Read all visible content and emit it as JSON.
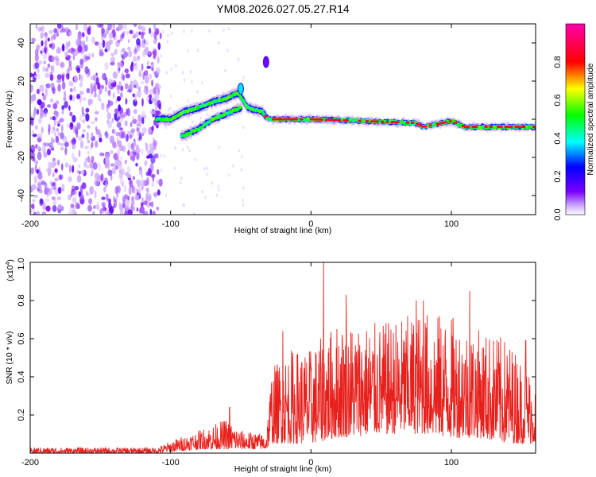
{
  "title": "YM08.2026.027.05.27.R14",
  "chart_data": [
    {
      "type": "heatmap",
      "title": "YM08.2026.027.05.27.R14",
      "xlabel": "Height of straight line (km)",
      "ylabel": "Frequency (Hz)",
      "xlim": [
        -200,
        160
      ],
      "ylim": [
        -50,
        50
      ],
      "xticks": [
        -200,
        -100,
        0,
        100
      ],
      "yticks": [
        -40,
        -20,
        0,
        20,
        40
      ],
      "xtick_labels": [
        "-200",
        "-100",
        "0",
        "100"
      ],
      "ytick_labels": [
        "-40",
        "-20",
        "0",
        "20",
        "40"
      ],
      "colorbar": {
        "label": "Normalized spectral amplitude",
        "range": [
          0,
          1
        ],
        "ticks": [
          0.0,
          0.2,
          0.4,
          0.6,
          0.8
        ],
        "tick_labels": [
          "0.0",
          "0.2",
          "0.4",
          "0.6",
          "0.8"
        ],
        "colors": [
          "#ffffff",
          "#7a00ff",
          "#0000ff",
          "#00ffff",
          "#00ff00",
          "#ffff00",
          "#ff0000",
          "#ff00aa"
        ]
      },
      "noise_region_x": [
        -200,
        -107
      ],
      "ridge": [
        {
          "x": -110,
          "y": 0
        },
        {
          "x": -100,
          "y": 0
        },
        {
          "x": -90,
          "y": 4
        },
        {
          "x": -80,
          "y": 6
        },
        {
          "x": -70,
          "y": 9
        },
        {
          "x": -60,
          "y": 11
        },
        {
          "x": -52,
          "y": 14
        },
        {
          "x": -45,
          "y": 6
        },
        {
          "x": -35,
          "y": 4
        },
        {
          "x": -30,
          "y": 0
        },
        {
          "x": 0,
          "y": 0
        },
        {
          "x": 40,
          "y": -1
        },
        {
          "x": 75,
          "y": -2
        },
        {
          "x": 80,
          "y": -4
        },
        {
          "x": 100,
          "y": -1
        },
        {
          "x": 110,
          "y": -4
        },
        {
          "x": 160,
          "y": -4
        }
      ],
      "lower_branch": [
        {
          "x": -92,
          "y": -9
        },
        {
          "x": -80,
          "y": -5
        },
        {
          "x": -70,
          "y": 0
        },
        {
          "x": -60,
          "y": 3
        },
        {
          "x": -50,
          "y": 6
        }
      ],
      "isolated_features": [
        {
          "x": -32,
          "y": 30
        },
        {
          "x": -50,
          "y": 16
        }
      ]
    },
    {
      "type": "line",
      "xlabel": "Height of straight line (km)",
      "ylabel": "SNR (10 * v/v)",
      "y_multiplier": "(x10",
      "y_multiplier_exp": "4",
      "y_multiplier_close": ")",
      "xlim": [
        -200,
        160
      ],
      "ylim": [
        0,
        1.0
      ],
      "xticks": [
        -200,
        -100,
        0,
        100
      ],
      "yticks": [
        0.2,
        0.4,
        0.6,
        0.8,
        1.0
      ],
      "xtick_labels": [
        "-200",
        "-100",
        "0",
        "100"
      ],
      "ytick_labels": [
        "0.2",
        "0.4",
        "0.6",
        "0.8",
        "1.0"
      ],
      "color": "#e8201c",
      "envelope": [
        {
          "x": -200,
          "lo": 0.0,
          "hi": 0.03
        },
        {
          "x": -110,
          "lo": 0.0,
          "hi": 0.03
        },
        {
          "x": -95,
          "lo": 0.01,
          "hi": 0.08
        },
        {
          "x": -80,
          "lo": 0.02,
          "hi": 0.12
        },
        {
          "x": -60,
          "lo": 0.02,
          "hi": 0.18
        },
        {
          "x": -50,
          "lo": 0.02,
          "hi": 0.12
        },
        {
          "x": -32,
          "lo": 0.02,
          "hi": 0.1
        },
        {
          "x": -28,
          "lo": 0.05,
          "hi": 0.45
        },
        {
          "x": -15,
          "lo": 0.05,
          "hi": 0.55
        },
        {
          "x": 0,
          "lo": 0.05,
          "hi": 0.55
        },
        {
          "x": 20,
          "lo": 0.08,
          "hi": 0.7
        },
        {
          "x": 50,
          "lo": 0.1,
          "hi": 0.68
        },
        {
          "x": 80,
          "lo": 0.1,
          "hi": 0.75
        },
        {
          "x": 100,
          "lo": 0.08,
          "hi": 0.72
        },
        {
          "x": 120,
          "lo": 0.08,
          "hi": 0.65
        },
        {
          "x": 140,
          "lo": 0.05,
          "hi": 0.6
        },
        {
          "x": 160,
          "lo": 0.05,
          "hi": 0.4
        }
      ],
      "peaks": [
        {
          "x": -58,
          "y": 0.24
        },
        {
          "x": -20,
          "y": 0.64
        },
        {
          "x": 9,
          "y": 1.0
        },
        {
          "x": 25,
          "y": 0.83
        },
        {
          "x": 75,
          "y": 0.8
        },
        {
          "x": 80,
          "y": 0.8
        },
        {
          "x": 113,
          "y": 0.85
        },
        {
          "x": 153,
          "y": 0.59
        }
      ]
    }
  ]
}
